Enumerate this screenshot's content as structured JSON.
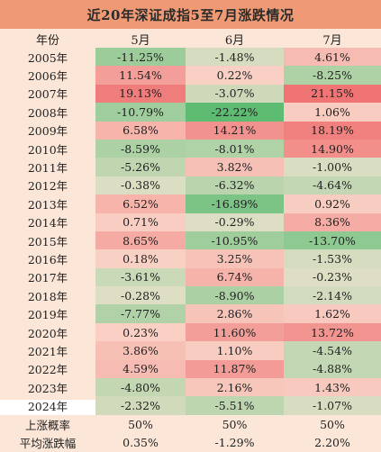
{
  "chart_data": {
    "type": "table",
    "title": "近20年深证成指5至7月涨跌情况",
    "columns": [
      "年份",
      "5月",
      "6月",
      "7月"
    ],
    "rows": [
      {
        "year": "2005年",
        "values": [
          "-11.25%",
          "-1.48%",
          "4.61%"
        ]
      },
      {
        "year": "2006年",
        "values": [
          "11.54%",
          "0.22%",
          "-8.25%"
        ]
      },
      {
        "year": "2007年",
        "values": [
          "19.13%",
          "-3.07%",
          "21.15%"
        ]
      },
      {
        "year": "2008年",
        "values": [
          "-10.79%",
          "-22.22%",
          "1.06%"
        ]
      },
      {
        "year": "2009年",
        "values": [
          "6.58%",
          "14.21%",
          "18.19%"
        ]
      },
      {
        "year": "2010年",
        "values": [
          "-8.59%",
          "-8.01%",
          "14.90%"
        ]
      },
      {
        "year": "2011年",
        "values": [
          "-5.26%",
          "3.82%",
          "-1.00%"
        ]
      },
      {
        "year": "2012年",
        "values": [
          "-0.38%",
          "-6.32%",
          "-4.64%"
        ]
      },
      {
        "year": "2013年",
        "values": [
          "6.52%",
          "-16.89%",
          "0.92%"
        ]
      },
      {
        "year": "2014年",
        "values": [
          "0.71%",
          "-0.29%",
          "8.36%"
        ]
      },
      {
        "year": "2015年",
        "values": [
          "8.65%",
          "-10.95%",
          "-13.70%"
        ]
      },
      {
        "year": "2016年",
        "values": [
          "0.18%",
          "3.25%",
          "-1.53%"
        ]
      },
      {
        "year": "2017年",
        "values": [
          "-3.61%",
          "6.74%",
          "-0.23%"
        ]
      },
      {
        "year": "2018年",
        "values": [
          "-0.28%",
          "-8.90%",
          "-2.14%"
        ]
      },
      {
        "year": "2019年",
        "values": [
          "-7.77%",
          "2.86%",
          "1.62%"
        ]
      },
      {
        "year": "2020年",
        "values": [
          "0.23%",
          "11.60%",
          "13.72%"
        ]
      },
      {
        "year": "2021年",
        "values": [
          "3.86%",
          "1.10%",
          "-4.54%"
        ]
      },
      {
        "year": "2022年",
        "values": [
          "4.59%",
          "11.87%",
          "-4.88%"
        ]
      },
      {
        "year": "2023年",
        "values": [
          "-4.80%",
          "2.16%",
          "1.43%"
        ]
      },
      {
        "year": "2024年",
        "values": [
          "-2.32%",
          "-5.51%",
          "-1.07%"
        ]
      }
    ],
    "summary": [
      {
        "label": "上涨概率",
        "values": [
          "50%",
          "50%",
          "50%"
        ]
      },
      {
        "label": "平均涨跌幅",
        "values": [
          "0.35%",
          "-1.29%",
          "2.20%"
        ]
      }
    ],
    "colors": {
      "title_bar": "#ef9a74",
      "background": "#fbe6d7",
      "positive_max": "#ee6f6f",
      "negative_max": "#5dbb72"
    }
  }
}
